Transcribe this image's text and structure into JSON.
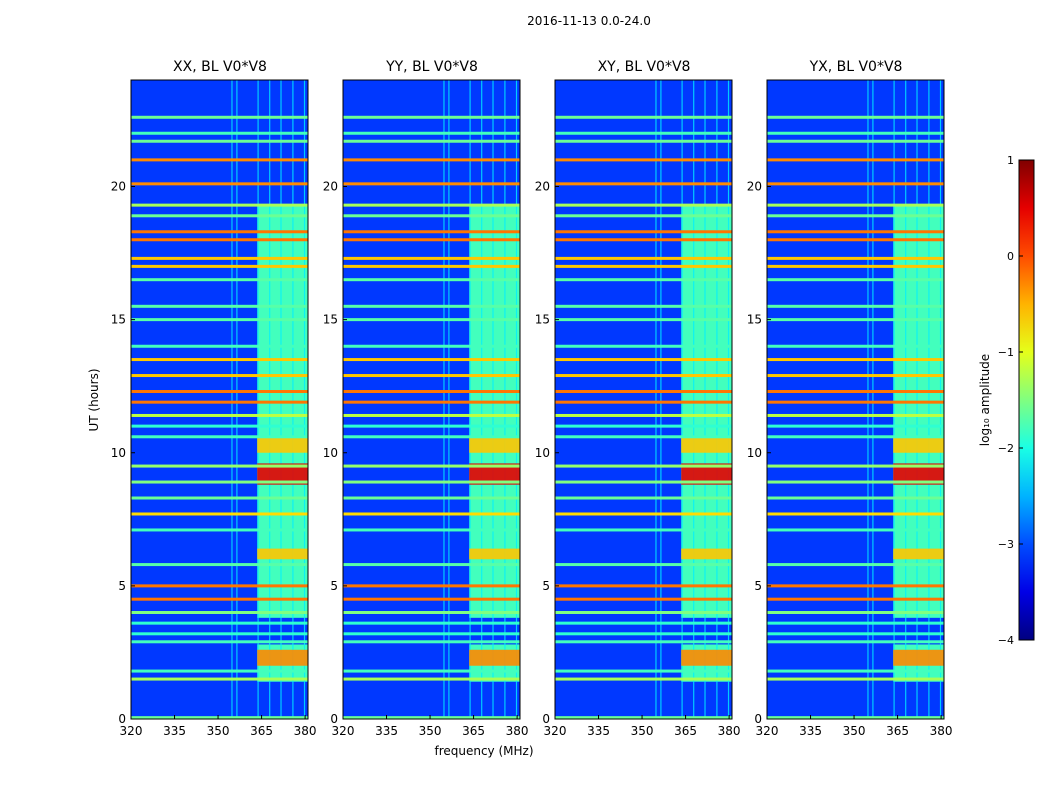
{
  "figure": {
    "suptitle": "2016-11-13 0.0-24.0",
    "xlabel": "frequency (MHz)",
    "ylabel": "UT (hours)",
    "colorbar_label": "log₁₀ amplitude",
    "colormap": "jet",
    "background": "#ffffff"
  },
  "chart_data": {
    "type": "heatmap",
    "title": "2016-11-13 0.0-24.0",
    "xlabel": "frequency (MHz)",
    "ylabel": "UT (hours)",
    "xlim": [
      320,
      381
    ],
    "ylim": [
      0,
      24
    ],
    "xticks": [
      320,
      335,
      350,
      365,
      380
    ],
    "yticks": [
      0,
      5,
      10,
      15,
      20
    ],
    "colorbar": {
      "label": "log₁₀ amplitude",
      "range": [
        -4,
        1
      ],
      "ticks": [
        1,
        0,
        -1,
        -2,
        -3,
        -4
      ]
    },
    "panels": [
      {
        "title": "XX, BL V0*V8",
        "pol": "XX"
      },
      {
        "title": "YY, BL V0*V8",
        "pol": "YY"
      },
      {
        "title": "XY, BL V0*V8",
        "pol": "XY"
      },
      {
        "title": "YX, BL V0*V8",
        "pol": "YX"
      }
    ],
    "background_level": -3.1,
    "band": {
      "freq_range_mhz": [
        363.5,
        381
      ],
      "level": -1.8
    },
    "band_hours": [
      [
        1.4,
        2.8
      ],
      [
        3.8,
        19.3
      ]
    ],
    "hot_bands": [
      {
        "t_range": [
          8.8,
          9.6
        ],
        "level": 0.5
      },
      {
        "t_range": [
          2.0,
          2.6
        ],
        "level": -0.3
      },
      {
        "t_range": [
          10.0,
          10.6
        ],
        "level": -0.6
      },
      {
        "t_range": [
          6.0,
          6.4
        ],
        "level": -0.6
      }
    ],
    "rfi_lines": [
      {
        "t": 0.05,
        "level": -1.6
      },
      {
        "t": 1.5,
        "level": -1.3
      },
      {
        "t": 1.8,
        "level": -1.8
      },
      {
        "t": 2.9,
        "level": -1.8
      },
      {
        "t": 3.2,
        "level": -1.9
      },
      {
        "t": 3.6,
        "level": -1.9
      },
      {
        "t": 4.0,
        "level": -1.5
      },
      {
        "t": 4.5,
        "level": -0.2
      },
      {
        "t": 5.0,
        "level": -0.2
      },
      {
        "t": 5.8,
        "level": -1.7
      },
      {
        "t": 7.1,
        "level": -1.8
      },
      {
        "t": 7.7,
        "level": -0.7
      },
      {
        "t": 8.3,
        "level": -1.6
      },
      {
        "t": 8.9,
        "level": -1.5
      },
      {
        "t": 9.5,
        "level": -1.4
      },
      {
        "t": 10.6,
        "level": -1.8
      },
      {
        "t": 11.0,
        "level": -1.9
      },
      {
        "t": 11.4,
        "level": -1.2
      },
      {
        "t": 11.9,
        "level": -0.2
      },
      {
        "t": 12.3,
        "level": -0.2
      },
      {
        "t": 12.9,
        "level": -0.6
      },
      {
        "t": 13.5,
        "level": -0.6
      },
      {
        "t": 14.0,
        "level": -1.8
      },
      {
        "t": 15.0,
        "level": -1.7
      },
      {
        "t": 15.5,
        "level": -1.7
      },
      {
        "t": 16.5,
        "level": -1.7
      },
      {
        "t": 17.0,
        "level": -0.6
      },
      {
        "t": 17.3,
        "level": -0.6
      },
      {
        "t": 18.0,
        "level": -0.2
      },
      {
        "t": 18.3,
        "level": -0.2
      },
      {
        "t": 18.9,
        "level": -1.6
      },
      {
        "t": 19.3,
        "level": -1.3
      },
      {
        "t": 20.1,
        "level": -0.3
      },
      {
        "t": 21.0,
        "level": -0.3
      },
      {
        "t": 21.7,
        "level": -1.6
      },
      {
        "t": 22.0,
        "level": -1.8
      },
      {
        "t": 22.6,
        "level": -1.6
      }
    ],
    "vertical_lines_mhz": [
      354.8,
      356.5,
      363.8,
      367.8,
      371.7,
      375.8,
      379.8
    ]
  }
}
